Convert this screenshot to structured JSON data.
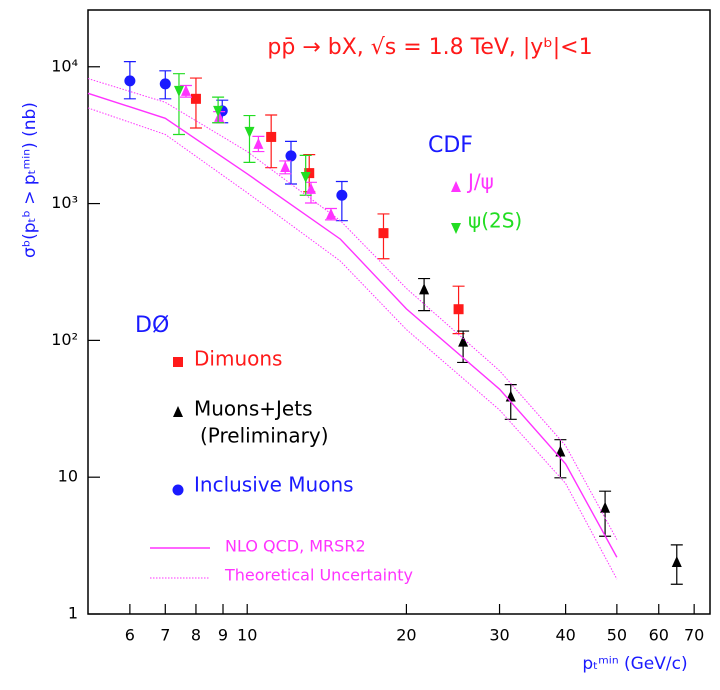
{
  "chart_data": {
    "type": "scatter",
    "title": "pp̄ → bX,  √s = 1.8 TeV,  |yᵇ|<1",
    "y_label": "σᵇ(pₜᵇ > pₜᵐⁱⁿ) (nb)",
    "x_label": "pₜᵐⁱⁿ (GeV/c)",
    "log_x": true,
    "log_y": true,
    "xlim": [
      5,
      75
    ],
    "xticks": [
      6,
      7,
      8,
      9,
      10,
      20,
      30,
      40,
      50,
      60,
      70
    ],
    "ylim": [
      1,
      26000
    ],
    "yticks": [
      1,
      10,
      {
        "value": 100,
        "label": "10²"
      },
      {
        "value": 1000,
        "label": "10³"
      },
      {
        "value": 10000,
        "label": "10⁴"
      }
    ],
    "annotations": [
      "DØ",
      "(Preliminary)",
      "CDF"
    ],
    "series": [
      {
        "name": "Dimuons",
        "color": "#ff1a1a",
        "marker": "square",
        "x": [
          8.0,
          11.1,
          13.1,
          18.1,
          25.1
        ],
        "values": [
          5830,
          3070,
          1670,
          608,
          169
        ],
        "ylow": [
          3570,
          1830,
          1220,
          395,
          112
        ],
        "yhigh": [
          8270,
          4440,
          2280,
          840,
          249
        ]
      },
      {
        "name": "Muons+Jets",
        "color": "#000000",
        "marker": "triangle-up",
        "x": [
          21.6,
          25.6,
          31.5,
          39.1,
          47.5,
          64.9
        ],
        "values": [
          236,
          98,
          38.9,
          15.4,
          5.98,
          2.4
        ],
        "ylow": [
          165,
          69,
          26.5,
          9.9,
          3.7,
          1.65
        ],
        "yhigh": [
          283,
          117,
          47.5,
          18.8,
          7.9,
          3.2
        ]
      },
      {
        "name": "Inclusive Muons",
        "color": "#1a1aff",
        "marker": "circle",
        "x": [
          6.0,
          7.0,
          8.97,
          12.1,
          15.1
        ],
        "values": [
          7890,
          7500,
          4760,
          2230,
          1150
        ],
        "ylow": [
          5830,
          5830,
          3900,
          1390,
          750
        ],
        "yhigh": [
          10900,
          9340,
          5700,
          2850,
          1450
        ]
      },
      {
        "name": "J/ψ",
        "color": "#ff33ff",
        "marker": "triangle-up",
        "x": [
          7.66,
          8.85,
          10.5,
          11.8,
          13.2,
          14.4
        ],
        "values": [
          6670,
          4300,
          2730,
          1850,
          1280,
          838
        ],
        "ylow": [
          6000,
          3900,
          2400,
          1650,
          1010,
          760
        ],
        "yhigh": [
          7300,
          4700,
          3100,
          2050,
          1430,
          920
        ]
      },
      {
        "name": "ψ(2S)",
        "color": "#22dd22",
        "marker": "triangle-down",
        "x": [
          7.43,
          8.81,
          10.1,
          12.9
        ],
        "values": [
          6670,
          4760,
          3340,
          1564
        ],
        "ylow": [
          3200,
          3900,
          2000,
          1150
        ],
        "yhigh": [
          8900,
          6000,
          4400,
          2250
        ]
      },
      {
        "name": "NLO QCD, MRSR2",
        "color": "#ff33ff",
        "marker": "line",
        "x": [
          5,
          7,
          10,
          15,
          20,
          30,
          40,
          50
        ],
        "values": [
          6400,
          4200,
          1650,
          550,
          170,
          44,
          12.5,
          2.6
        ]
      },
      {
        "name": "Theoretical Uncertainty",
        "color": "#ff33ff",
        "marker": "band",
        "x": [
          5,
          7,
          10,
          15,
          20,
          30,
          40,
          50
        ],
        "upper": [
          8200,
          5500,
          2400,
          750,
          240,
          60,
          17,
          3.5
        ],
        "lower": [
          5000,
          3200,
          1200,
          380,
          120,
          31,
          9,
          1.8
        ]
      }
    ]
  }
}
